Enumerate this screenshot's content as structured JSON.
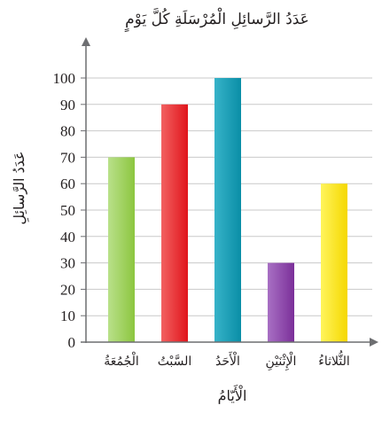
{
  "chart_data": {
    "type": "bar",
    "title": "عَدَدُ الرَّسائِلِ الْمُرْسَلَةِ كُلَّ يَوْمٍ",
    "xlabel": "الْأَيّامُ",
    "ylabel": "عَدَدُ الرَّسائِلِ",
    "categories": [
      "الْجُمُعَةُ",
      "السَّبْتُ",
      "الْأَحَدُ",
      "الْإِثْنَيْنِ",
      "الثُّلاثاءُ"
    ],
    "values": [
      70,
      90,
      100,
      30,
      60
    ],
    "ylim": [
      0,
      100
    ],
    "yticks": [
      0,
      10,
      20,
      30,
      40,
      50,
      60,
      70,
      80,
      90,
      100
    ],
    "grid": true,
    "bar_colors": [
      [
        "#b9e08a",
        "#8cc63f"
      ],
      [
        "#f26161",
        "#e0141b"
      ],
      [
        "#37b3c9",
        "#0a8ea6"
      ],
      [
        "#a870c4",
        "#7b2f99"
      ],
      [
        "#fff45c",
        "#f5d800"
      ]
    ],
    "axis_color": "#6d6e71",
    "grid_color": "#c9c9c9"
  }
}
